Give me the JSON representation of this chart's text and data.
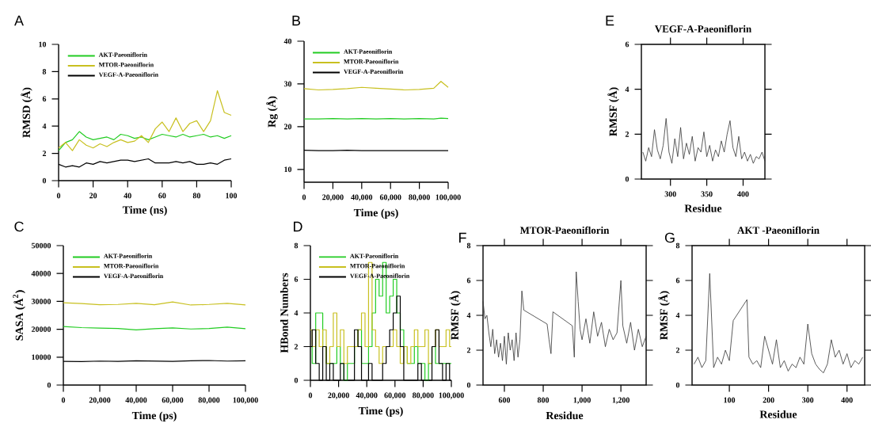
{
  "chart_data": [
    {
      "type": "line",
      "annotations": [
        "A"
      ],
      "xlabel": "Time (ns)",
      "ylabel": "RMSD (Å)",
      "xlim": [
        0,
        100
      ],
      "ylim": [
        0,
        10
      ],
      "xticks": [
        0,
        20,
        40,
        60,
        80,
        100
      ],
      "yticks": [
        0,
        2,
        4,
        6,
        8,
        10
      ],
      "legend": "top left",
      "x": [
        0,
        4,
        8,
        12,
        16,
        20,
        24,
        28,
        32,
        36,
        40,
        44,
        48,
        52,
        56,
        60,
        64,
        68,
        72,
        76,
        80,
        84,
        88,
        92,
        96,
        100
      ],
      "series": [
        {
          "name": "AKT-Paeoniflorin",
          "color": "#22cc22",
          "values": [
            2.2,
            2.8,
            3.0,
            3.6,
            3.2,
            3.0,
            3.1,
            3.2,
            3.0,
            3.4,
            3.3,
            3.1,
            3.2,
            3.0,
            3.2,
            3.4,
            3.3,
            3.2,
            3.4,
            3.2,
            3.3,
            3.4,
            3.2,
            3.3,
            3.1,
            3.3
          ]
        },
        {
          "name": "MTOR-Paeoniflorin",
          "color": "#c8c020",
          "values": [
            2.4,
            2.8,
            2.2,
            3.0,
            2.6,
            2.4,
            2.7,
            2.5,
            2.8,
            3.0,
            2.8,
            2.9,
            3.3,
            2.8,
            3.8,
            4.3,
            3.6,
            4.6,
            3.6,
            4.2,
            4.4,
            3.6,
            4.4,
            6.6,
            5.0,
            4.8
          ]
        },
        {
          "name": "VEGF-A-Paeoniflorin",
          "color": "#000000",
          "values": [
            1.2,
            1.0,
            1.1,
            1.0,
            1.3,
            1.2,
            1.4,
            1.3,
            1.4,
            1.5,
            1.5,
            1.4,
            1.5,
            1.6,
            1.3,
            1.3,
            1.3,
            1.4,
            1.3,
            1.4,
            1.2,
            1.2,
            1.3,
            1.2,
            1.5,
            1.6
          ]
        }
      ]
    },
    {
      "type": "line",
      "annotations": [
        "B"
      ],
      "xlabel": "Time (ps)",
      "ylabel": "Rg (Å)",
      "xlim": [
        0,
        100000
      ],
      "ylim": [
        7,
        40
      ],
      "xticks": [
        0,
        {
          "value": 20000,
          "label": "20,000"
        },
        {
          "value": 40000,
          "label": "40,000"
        },
        {
          "value": 60000,
          "label": "60,000"
        },
        {
          "value": 80000,
          "label": "80,000"
        },
        {
          "value": 100000,
          "label": "100,000"
        }
      ],
      "yticks": [
        10,
        20,
        30,
        40
      ],
      "legend": "top left",
      "x": [
        0,
        10000,
        20000,
        30000,
        40000,
        50000,
        60000,
        70000,
        80000,
        90000,
        95000,
        100000
      ],
      "series": [
        {
          "name": "AKT-Paeoniflorin",
          "color": "#22cc22",
          "values": [
            21.8,
            21.8,
            21.9,
            21.8,
            21.9,
            21.8,
            21.9,
            21.8,
            21.9,
            21.8,
            22.0,
            21.9
          ]
        },
        {
          "name": "MTOR-Paeoniflorin",
          "color": "#c8c020",
          "values": [
            28.9,
            28.6,
            28.7,
            28.9,
            29.2,
            29.0,
            28.8,
            28.6,
            28.7,
            29.0,
            30.6,
            29.2
          ]
        },
        {
          "name": "VEGF-A-Paeoniflorin",
          "color": "#000000",
          "values": [
            14.5,
            14.4,
            14.4,
            14.5,
            14.4,
            14.4,
            14.4,
            14.4,
            14.4,
            14.4,
            14.4,
            14.4
          ]
        }
      ]
    },
    {
      "type": "line",
      "annotations": [
        "C"
      ],
      "xlabel": "Time (ps)",
      "ylabel": "SASA (Å$^{2}$)",
      "xlim": [
        0,
        100000
      ],
      "ylim": [
        0,
        50000
      ],
      "xticks": [
        0,
        {
          "value": 20000,
          "label": "20,000"
        },
        {
          "value": 40000,
          "label": "40,000"
        },
        {
          "value": 60000,
          "label": "60,000"
        },
        {
          "value": 80000,
          "label": "80,000"
        },
        {
          "value": 100000,
          "label": "100,000"
        }
      ],
      "yticks": [
        0,
        10000,
        20000,
        30000,
        40000,
        50000
      ],
      "legend": "top left",
      "x": [
        0,
        10000,
        20000,
        30000,
        40000,
        50000,
        60000,
        70000,
        80000,
        90000,
        100000
      ],
      "series": [
        {
          "name": "AKT-Paeoniflorin",
          "color": "#22cc22",
          "values": [
            21000,
            20600,
            20400,
            20300,
            19800,
            20200,
            20500,
            20100,
            20300,
            20800,
            20200
          ]
        },
        {
          "name": "MTOR-Paeoniflorin",
          "color": "#c8c020",
          "values": [
            29500,
            29200,
            28800,
            28900,
            29300,
            28800,
            29800,
            28700,
            28900,
            29300,
            28700
          ]
        },
        {
          "name": "VEGF-A-Paeoniflorin",
          "color": "#000000",
          "values": [
            8500,
            8400,
            8600,
            8500,
            8700,
            8600,
            8500,
            8700,
            8800,
            8600,
            8700
          ]
        }
      ]
    },
    {
      "type": "step",
      "annotations": [
        "D"
      ],
      "xlabel": "Time (ps)",
      "ylabel": "HBond Numbers",
      "xlim": [
        0,
        100000
      ],
      "ylim": [
        0,
        8
      ],
      "xticks": [
        0,
        {
          "value": 20000,
          "label": "20,000"
        },
        {
          "value": 40000,
          "label": "40,000"
        },
        {
          "value": 60000,
          "label": "60,000"
        },
        {
          "value": 80000,
          "label": "80,000"
        },
        {
          "value": 100000,
          "label": "100,000"
        }
      ],
      "yticks": [
        0,
        2,
        4,
        6,
        8
      ],
      "legend": "top left",
      "x": [
        0,
        2500,
        5000,
        7500,
        10000,
        12500,
        15000,
        17500,
        20000,
        22500,
        25000,
        27500,
        30000,
        32500,
        35000,
        37500,
        40000,
        42500,
        45000,
        47500,
        50000,
        52500,
        55000,
        57500,
        60000,
        62500,
        65000,
        67500,
        70000,
        72500,
        75000,
        77500,
        80000,
        82500,
        85000,
        87500,
        90000,
        92500,
        95000,
        97500,
        100000
      ],
      "series": [
        {
          "name": "AKT-Paeoniflorin",
          "color": "#22cc22",
          "values": [
            2,
            1,
            4,
            4,
            2,
            1,
            1,
            1,
            2,
            1,
            0,
            1,
            1,
            2,
            3,
            1,
            1,
            2,
            4,
            6,
            5,
            7,
            4,
            5,
            6,
            4,
            3,
            2,
            1,
            1,
            2,
            1,
            1,
            0,
            1,
            2,
            1,
            1,
            1,
            1,
            1
          ]
        },
        {
          "name": "MTOR-Paeoniflorin",
          "color": "#c8c020",
          "values": [
            3,
            2,
            3,
            2,
            3,
            1,
            2,
            4,
            2,
            3,
            1,
            2,
            2,
            2,
            3,
            4,
            2,
            7,
            3,
            2,
            1,
            2,
            2,
            2,
            3,
            2,
            1,
            2,
            1,
            2,
            3,
            2,
            2,
            3,
            1,
            2,
            3,
            2,
            2,
            3,
            2
          ]
        },
        {
          "name": "VEGF-A-Paeoniflorin",
          "color": "#000000",
          "values": [
            2,
            3,
            1,
            0,
            2,
            0,
            1,
            0,
            0,
            1,
            0,
            0,
            0,
            3,
            2,
            0,
            0,
            1,
            0,
            0,
            0,
            1,
            2,
            3,
            4,
            5,
            2,
            0,
            0,
            0,
            0,
            1,
            0,
            0,
            0,
            2,
            3,
            1,
            0,
            1,
            0
          ]
        }
      ]
    },
    {
      "type": "line",
      "title": "VEGF-A-Paeoniflorin",
      "annotations": [
        "E"
      ],
      "xlabel": "Residue",
      "ylabel": "RMSF (Å)",
      "xlim": [
        260,
        430
      ],
      "ylim": [
        0,
        6
      ],
      "xticks": [
        300,
        350,
        400
      ],
      "yticks": [
        0,
        2,
        4,
        6
      ],
      "x": [
        262,
        266,
        270,
        274,
        278,
        282,
        286,
        290,
        294,
        298,
        302,
        306,
        310,
        314,
        318,
        322,
        326,
        330,
        334,
        338,
        342,
        346,
        350,
        354,
        358,
        362,
        366,
        370,
        374,
        378,
        382,
        386,
        390,
        394,
        398,
        402,
        406,
        410,
        414,
        418,
        422,
        426,
        430
      ],
      "series": [
        {
          "color": "#333333",
          "values": [
            1.2,
            0.8,
            1.4,
            1.0,
            2.2,
            1.3,
            0.9,
            1.5,
            2.7,
            1.2,
            0.7,
            1.8,
            1.0,
            2.3,
            0.9,
            1.6,
            1.1,
            1.9,
            0.8,
            1.4,
            1.2,
            2.1,
            1.0,
            1.5,
            0.8,
            1.3,
            1.0,
            1.7,
            1.2,
            2.0,
            2.6,
            1.4,
            1.0,
            1.9,
            0.9,
            1.2,
            0.8,
            1.1,
            0.7,
            1.0,
            0.9,
            1.2,
            0.8
          ]
        }
      ]
    },
    {
      "type": "line",
      "title": "MTOR-Paeoniflorin",
      "annotations": [
        "F"
      ],
      "xlabel": "Residue",
      "ylabel": "RMSF (Å)",
      "xlim": [
        490,
        1330
      ],
      "ylim": [
        0,
        8
      ],
      "xticks": [
        600,
        800,
        {
          "value": 1000,
          "label": "1,000"
        },
        {
          "value": 1200,
          "label": "1,200"
        }
      ],
      "yticks": [
        0,
        2,
        4,
        6,
        8
      ],
      "x": [
        490,
        500,
        510,
        520,
        530,
        540,
        550,
        560,
        570,
        580,
        590,
        600,
        610,
        620,
        630,
        640,
        650,
        660,
        670,
        680,
        690,
        700,
        820,
        830,
        840,
        850,
        950,
        960,
        970,
        980,
        990,
        1000,
        1020,
        1040,
        1060,
        1080,
        1100,
        1120,
        1140,
        1160,
        1180,
        1200,
        1210,
        1230,
        1250,
        1270,
        1290,
        1310,
        1330
      ],
      "series": [
        {
          "color": "#333333",
          "values": [
            4.8,
            3.8,
            4.0,
            3.0,
            2.2,
            3.2,
            1.8,
            2.6,
            1.6,
            2.4,
            1.4,
            2.8,
            1.2,
            3.0,
            2.0,
            2.6,
            1.4,
            3.0,
            1.6,
            2.6,
            5.4,
            4.3,
            3.5,
            2.6,
            1.8,
            4.2,
            3.4,
            1.6,
            6.5,
            4.8,
            3.2,
            2.6,
            3.8,
            2.4,
            4.2,
            2.8,
            3.6,
            2.2,
            3.2,
            2.6,
            3.0,
            6.0,
            3.4,
            2.4,
            3.6,
            2.0,
            3.2,
            2.2,
            2.8
          ]
        }
      ]
    },
    {
      "type": "line",
      "title": "AKT -Paeoniflorin",
      "annotations": [
        "G"
      ],
      "xlabel": "Residue",
      "ylabel": "RMSF (Å)",
      "xlim": [
        5,
        445
      ],
      "ylim": [
        0,
        8
      ],
      "xticks": [
        100,
        200,
        300,
        400
      ],
      "yticks": [
        0,
        2,
        4,
        6,
        8
      ],
      "x": [
        10,
        20,
        30,
        40,
        50,
        60,
        70,
        80,
        90,
        100,
        110,
        145,
        150,
        160,
        170,
        180,
        190,
        200,
        210,
        220,
        230,
        240,
        250,
        260,
        270,
        280,
        290,
        300,
        310,
        320,
        330,
        340,
        350,
        360,
        370,
        380,
        390,
        400,
        410,
        420,
        430,
        440
      ],
      "series": [
        {
          "color": "#333333",
          "values": [
            1.2,
            1.6,
            1.0,
            1.4,
            6.4,
            1.0,
            1.6,
            1.2,
            2.0,
            1.4,
            3.7,
            4.9,
            1.6,
            1.2,
            1.4,
            1.0,
            2.8,
            2.0,
            1.2,
            2.6,
            1.0,
            1.4,
            0.8,
            1.2,
            1.0,
            1.6,
            1.2,
            3.5,
            1.8,
            1.2,
            0.9,
            0.7,
            1.2,
            2.6,
            1.6,
            2.0,
            1.2,
            1.8,
            1.0,
            1.4,
            1.2,
            1.6
          ]
        }
      ]
    }
  ]
}
